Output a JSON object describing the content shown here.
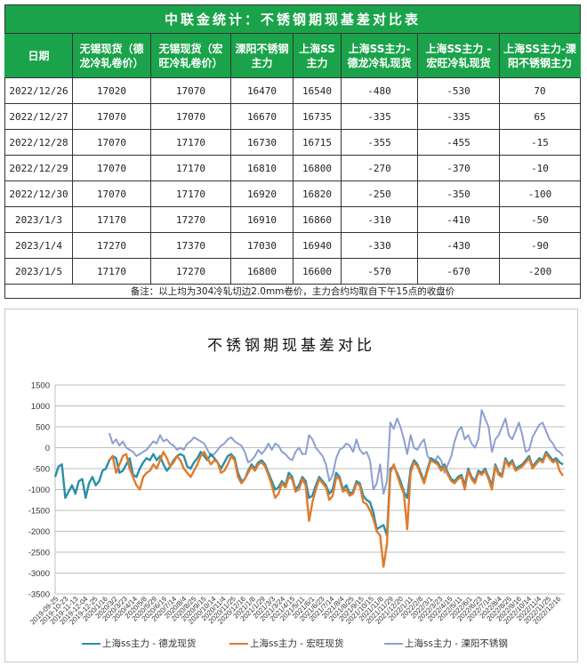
{
  "table": {
    "title": "中联金统计：不锈钢期现基差对比表",
    "headers": [
      [
        "日期"
      ],
      [
        "无锡现货（德",
        "龙冷轧卷价）"
      ],
      [
        "无锡现货（宏",
        "旺冷轧卷价）"
      ],
      [
        "溧阳不锈钢",
        "主力"
      ],
      [
        "上海SS",
        "主力"
      ],
      [
        "上海SS主力-",
        "德龙冷轧现货"
      ],
      [
        "上海SS主力 -",
        "宏旺冷轧现货"
      ],
      [
        "上海SS主力-溧",
        "阳不锈钢主力"
      ]
    ],
    "rows": [
      [
        "2022/12/26",
        "17020",
        "17070",
        "16470",
        "16540",
        "-480",
        "-530",
        "70"
      ],
      [
        "2022/12/27",
        "17070",
        "17070",
        "16670",
        "16735",
        "-335",
        "-335",
        "65"
      ],
      [
        "2022/12/28",
        "17070",
        "17170",
        "16730",
        "16715",
        "-355",
        "-455",
        "-15"
      ],
      [
        "2022/12/29",
        "17070",
        "17170",
        "16810",
        "16800",
        "-270",
        "-370",
        "-10"
      ],
      [
        "2022/12/30",
        "17070",
        "17170",
        "16920",
        "16820",
        "-250",
        "-350",
        "-100"
      ],
      [
        "2023/1/3",
        "17170",
        "17270",
        "16910",
        "16860",
        "-310",
        "-410",
        "-50"
      ],
      [
        "2023/1/4",
        "17270",
        "17370",
        "17030",
        "16940",
        "-330",
        "-430",
        "-90"
      ],
      [
        "2023/1/5",
        "17170",
        "17270",
        "16800",
        "16600",
        "-570",
        "-670",
        "-200"
      ]
    ],
    "note": "备注：以上均为304冷轧切边2.0mm卷价，主力合约均取自下午15点的收盘价"
  },
  "colors": {
    "header_green": "#1aa34a",
    "series_delong": "#2a8fa8",
    "series_hongwang": "#e07b2c",
    "series_liyang": "#8d9fd0",
    "gridline": "#bfbfbf"
  },
  "chart_data": {
    "type": "line",
    "title": "不锈钢期现基差对比",
    "xlabel": "",
    "ylabel": "",
    "ylim": [
      -3500,
      1500
    ],
    "yticks": [
      1500,
      1000,
      500,
      0,
      -500,
      -1000,
      -1500,
      -2000,
      -2500,
      -3000,
      -3500
    ],
    "grid": true,
    "legend_position": "bottom",
    "x_tick_labels": [
      "2019-09-25",
      "2019-10-23",
      "2019-11-13",
      "2019-12-04",
      "2019-12-25",
      "2020/1/16",
      "2020/3/2",
      "2020/3/23",
      "2020/4/14",
      "2020/5/8",
      "2020/5/29",
      "2020/6/19",
      "2020/7/14",
      "2020/8/4",
      "2020/8/25",
      "2020/9/15",
      "2020/10/14",
      "2020/11/4",
      "2020/11/25",
      "2020/12/16",
      "2021/1/8",
      "2021/1/29",
      "2021/3/3",
      "2021/3/24",
      "2021/4/15",
      "2021/5/11",
      "2021/6/1",
      "2021/6/23",
      "2021/7/14",
      "2021/8/4",
      "2021/8/25",
      "2021/9/15",
      "2021/10/15",
      "2021/11/8",
      "2021/11/29",
      "2021/12/20",
      "2022/1/11",
      "2022/2/8",
      "2022/3/1",
      "2022/3/23",
      "2022/4/15",
      "2022/5/11",
      "2022/6/1",
      "2022/6/23",
      "2022/7/14",
      "2022/8/4",
      "2022/8/25",
      "2022/9/16",
      "2022/10/14",
      "2022/11/4",
      "2022/11/25",
      "2022/12/16"
    ],
    "series": [
      {
        "name": "上海ss主力 - 德龙现货",
        "color": "#2a8fa8",
        "values": [
          -700,
          -450,
          -400,
          -1200,
          -1050,
          -900,
          -1100,
          -800,
          -750,
          -1200,
          -850,
          -700,
          -900,
          -800,
          -550,
          -500,
          -300,
          -200,
          -250,
          -600,
          -550,
          -400,
          -250,
          -650,
          -700,
          -500,
          -350,
          -250,
          -300,
          -150,
          -300,
          -200,
          -400,
          -550,
          -450,
          -300,
          -200,
          -150,
          -200,
          -450,
          -500,
          -350,
          -250,
          -100,
          -200,
          -300,
          -150,
          -250,
          -350,
          -500,
          -350,
          -200,
          -150,
          -250,
          -600,
          -800,
          -750,
          -550,
          -400,
          -500,
          -350,
          -300,
          -400,
          -600,
          -800,
          -1000,
          -950,
          -800,
          -900,
          -600,
          -700,
          -1000,
          -900,
          -700,
          -800,
          -1200,
          -1150,
          -900,
          -700,
          -800,
          -900,
          -1100,
          -1000,
          -600,
          -700,
          -1000,
          -900,
          -1100,
          -1050,
          -800,
          -850,
          -1150,
          -1250,
          -1300,
          -1550,
          -1950,
          -1900,
          -1850,
          -2100,
          -500,
          -450,
          -600,
          -800,
          -1050,
          -1200,
          -500,
          -300,
          -400,
          -600,
          -800,
          -500,
          -250,
          -300,
          -350,
          -500,
          -400,
          -600,
          -750,
          -800,
          -700,
          -650,
          -900,
          -500,
          -700,
          -800,
          -550,
          -600,
          -500,
          -700,
          -900,
          -400,
          -600,
          -650,
          -250,
          -400,
          -300,
          -500,
          -450,
          -400,
          -300,
          -200,
          -450,
          -350,
          -250,
          -300,
          -100,
          -200,
          -300,
          -250,
          -350,
          -400
        ],
        "note": "approximate visual trace; series starts 2019-09-25, final table values -480..-570"
      },
      {
        "name": "上海ss主力 - 宏旺现货",
        "color": "#e07b2c",
        "values": [
          null,
          null,
          null,
          null,
          null,
          null,
          null,
          null,
          null,
          null,
          null,
          null,
          null,
          null,
          null,
          null,
          -300,
          -200,
          -600,
          -400,
          -200,
          -150,
          -500,
          -700,
          -900,
          -1000,
          -700,
          -600,
          -550,
          -400,
          -500,
          -300,
          -100,
          -250,
          -450,
          -350,
          -200,
          -300,
          -500,
          -600,
          -700,
          -550,
          -400,
          -200,
          -100,
          -250,
          -400,
          -300,
          -350,
          -600,
          -550,
          -400,
          -200,
          -300,
          -700,
          -850,
          -750,
          -600,
          -450,
          -550,
          -400,
          -350,
          -450,
          -650,
          -900,
          -1200,
          -1100,
          -850,
          -950,
          -700,
          -750,
          -1050,
          -1000,
          -750,
          -900,
          -1750,
          -1300,
          -1000,
          -750,
          -850,
          -950,
          -1250,
          -1150,
          -700,
          -750,
          -1050,
          -1000,
          -1150,
          -1100,
          -850,
          -900,
          -1300,
          -1350,
          -1500,
          -1700,
          -2000,
          -2100,
          -2850,
          -2300,
          -600,
          -400,
          -650,
          -900,
          -1100,
          -1950,
          -600,
          -350,
          -450,
          -650,
          -850,
          -550,
          -300,
          -350,
          -400,
          -550,
          -450,
          -650,
          -800,
          -850,
          -750,
          -700,
          -1000,
          -550,
          -750,
          -850,
          -600,
          -650,
          -550,
          -750,
          -1000,
          -450,
          -650,
          -700,
          -300,
          -450,
          -350,
          -550,
          -500,
          -450,
          -350,
          -250,
          -500,
          -400,
          -300,
          -350,
          -150,
          -250,
          -350,
          -300,
          -550,
          -670
        ]
      },
      {
        "name": "上海ss主力 - 溧阳不锈钢",
        "color": "#8d9fd0",
        "values": [
          null,
          null,
          null,
          null,
          null,
          null,
          null,
          null,
          null,
          null,
          null,
          null,
          null,
          null,
          null,
          null,
          350,
          100,
          200,
          50,
          150,
          0,
          -50,
          -100,
          -200,
          -150,
          -100,
          -50,
          50,
          150,
          100,
          300,
          150,
          200,
          100,
          50,
          -50,
          0,
          -50,
          100,
          150,
          250,
          200,
          150,
          100,
          -50,
          -200,
          -150,
          -50,
          50,
          100,
          200,
          250,
          150,
          100,
          50,
          -100,
          -350,
          -300,
          -200,
          -50,
          -150,
          -50,
          100,
          -50,
          100,
          50,
          -100,
          -150,
          -250,
          -300,
          -100,
          0,
          -150,
          -150,
          300,
          200,
          0,
          -100,
          -200,
          -400,
          -800,
          -650,
          -250,
          -50,
          0,
          100,
          50,
          -100,
          200,
          -50,
          -150,
          -100,
          -300,
          -1000,
          -850,
          -400,
          -1100,
          -800,
          600,
          450,
          700,
          500,
          200,
          -150,
          300,
          0,
          -50,
          100,
          200,
          -200,
          -300,
          -350,
          -200,
          -300,
          -600,
          -400,
          -200,
          150,
          400,
          500,
          200,
          300,
          100,
          0,
          200,
          900,
          700,
          500,
          -100,
          200,
          300,
          500,
          700,
          300,
          200,
          400,
          600,
          300,
          -100,
          -50,
          250,
          400,
          550,
          600,
          400,
          200,
          100,
          -50,
          -100,
          -200
        ]
      }
    ]
  }
}
